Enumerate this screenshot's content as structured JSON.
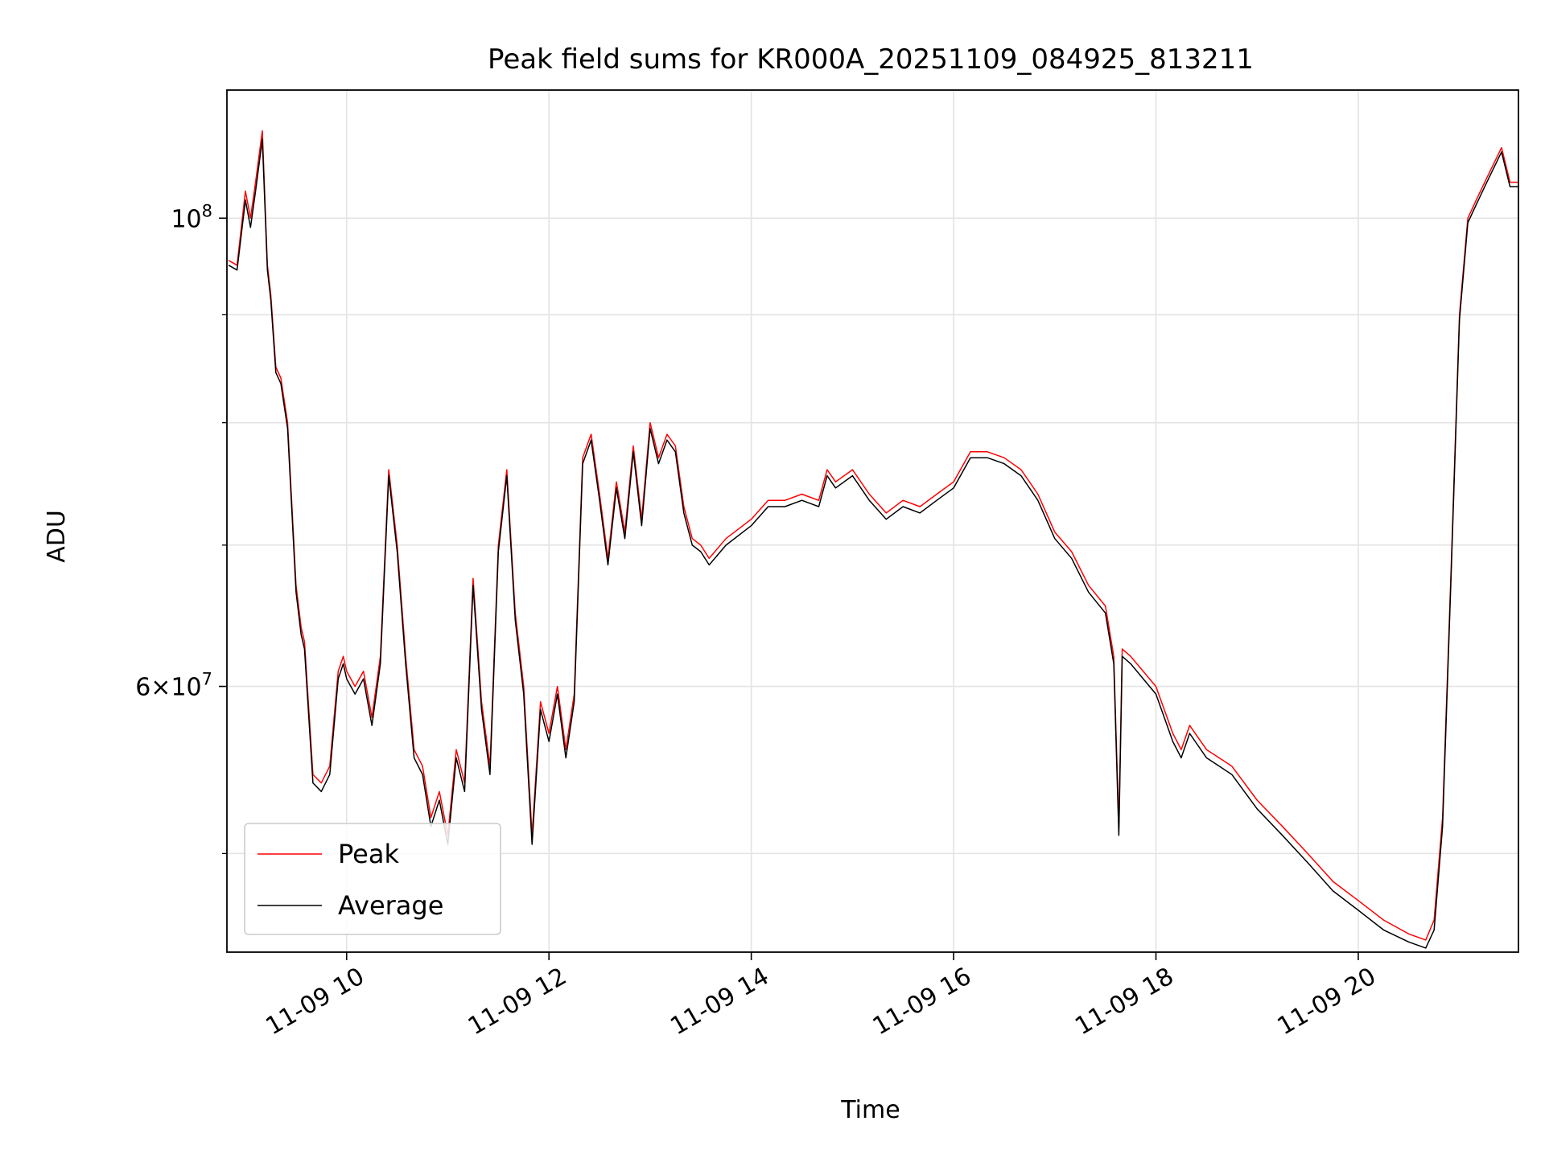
{
  "chart_data": {
    "type": "line",
    "title": "Peak field sums for KR000A_20251109_084925_813211",
    "xlabel": "Time",
    "ylabel": "ADU",
    "x_type": "datetime",
    "xlim": [
      "2025-11-09 08:49",
      "2025-11-09 21:35"
    ],
    "ylim": [
      44900000,
      115000000
    ],
    "y_scale": "log",
    "grid": true,
    "legend_position": "lower-left",
    "x_ticks": [
      {
        "t": "2025-11-09 10:00",
        "label": "11-09 10"
      },
      {
        "t": "2025-11-09 12:00",
        "label": "11-09 12"
      },
      {
        "t": "2025-11-09 14:00",
        "label": "11-09 14"
      },
      {
        "t": "2025-11-09 16:00",
        "label": "11-09 16"
      },
      {
        "t": "2025-11-09 18:00",
        "label": "11-09 18"
      },
      {
        "t": "2025-11-09 20:00",
        "label": "11-09 20"
      }
    ],
    "y_major_ticks": [
      {
        "value": 100000000,
        "base": "10",
        "exp": "8",
        "prefix": ""
      },
      {
        "value": 60000000,
        "base": "10",
        "exp": "7",
        "prefix": "6×"
      }
    ],
    "y_minor_ticks": [
      50000000,
      70000000,
      80000000,
      90000000
    ],
    "series": [
      {
        "name": "Peak",
        "color": "#ff0000",
        "x": [
          "2025-11-09 08:50",
          "2025-11-09 08:55",
          "2025-11-09 09:00",
          "2025-11-09 09:03",
          "2025-11-09 09:06",
          "2025-11-09 09:10",
          "2025-11-09 09:13",
          "2025-11-09 09:15",
          "2025-11-09 09:18",
          "2025-11-09 09:21",
          "2025-11-09 09:25",
          "2025-11-09 09:30",
          "2025-11-09 09:33",
          "2025-11-09 09:35",
          "2025-11-09 09:40",
          "2025-11-09 09:45",
          "2025-11-09 09:50",
          "2025-11-09 09:55",
          "2025-11-09 09:58",
          "2025-11-09 10:00",
          "2025-11-09 10:05",
          "2025-11-09 10:10",
          "2025-11-09 10:15",
          "2025-11-09 10:20",
          "2025-11-09 10:25",
          "2025-11-09 10:30",
          "2025-11-09 10:35",
          "2025-11-09 10:40",
          "2025-11-09 10:45",
          "2025-11-09 10:50",
          "2025-11-09 10:55",
          "2025-11-09 11:00",
          "2025-11-09 11:05",
          "2025-11-09 11:10",
          "2025-11-09 11:15",
          "2025-11-09 11:20",
          "2025-11-09 11:25",
          "2025-11-09 11:30",
          "2025-11-09 11:35",
          "2025-11-09 11:40",
          "2025-11-09 11:45",
          "2025-11-09 11:50",
          "2025-11-09 11:55",
          "2025-11-09 12:00",
          "2025-11-09 12:05",
          "2025-11-09 12:10",
          "2025-11-09 12:15",
          "2025-11-09 12:20",
          "2025-11-09 12:25",
          "2025-11-09 12:30",
          "2025-11-09 12:35",
          "2025-11-09 12:40",
          "2025-11-09 12:45",
          "2025-11-09 12:50",
          "2025-11-09 12:55",
          "2025-11-09 13:00",
          "2025-11-09 13:05",
          "2025-11-09 13:10",
          "2025-11-09 13:15",
          "2025-11-09 13:20",
          "2025-11-09 13:25",
          "2025-11-09 13:30",
          "2025-11-09 13:35",
          "2025-11-09 13:45",
          "2025-11-09 14:00",
          "2025-11-09 14:10",
          "2025-11-09 14:20",
          "2025-11-09 14:30",
          "2025-11-09 14:40",
          "2025-11-09 14:45",
          "2025-11-09 14:50",
          "2025-11-09 15:00",
          "2025-11-09 15:10",
          "2025-11-09 15:20",
          "2025-11-09 15:30",
          "2025-11-09 15:40",
          "2025-11-09 15:50",
          "2025-11-09 16:00",
          "2025-11-09 16:10",
          "2025-11-09 16:20",
          "2025-11-09 16:30",
          "2025-11-09 16:40",
          "2025-11-09 16:50",
          "2025-11-09 17:00",
          "2025-11-09 17:10",
          "2025-11-09 17:20",
          "2025-11-09 17:30",
          "2025-11-09 17:35",
          "2025-11-09 17:38",
          "2025-11-09 17:40",
          "2025-11-09 17:45",
          "2025-11-09 18:00",
          "2025-11-09 18:10",
          "2025-11-09 18:15",
          "2025-11-09 18:20",
          "2025-11-09 18:30",
          "2025-11-09 18:45",
          "2025-11-09 19:00",
          "2025-11-09 19:15",
          "2025-11-09 19:30",
          "2025-11-09 19:45",
          "2025-11-09 20:00",
          "2025-11-09 20:15",
          "2025-11-09 20:30",
          "2025-11-09 20:40",
          "2025-11-09 20:45",
          "2025-11-09 20:50",
          "2025-11-09 20:55",
          "2025-11-09 21:00",
          "2025-11-09 21:05",
          "2025-11-09 21:10",
          "2025-11-09 21:15",
          "2025-11-09 21:20",
          "2025-11-09 21:25",
          "2025-11-09 21:30",
          "2025-11-09 21:35"
        ],
        "values": [
          95500000,
          95000000,
          103000000,
          100000000,
          104000000,
          110000000,
          95000000,
          92000000,
          85000000,
          84000000,
          80000000,
          67000000,
          64000000,
          63000000,
          54500000,
          54000000,
          55000000,
          61000000,
          62000000,
          61000000,
          60000000,
          61000000,
          58000000,
          62000000,
          76000000,
          70000000,
          62000000,
          56000000,
          55000000,
          52000000,
          53500000,
          51000000,
          56000000,
          54000000,
          67500000,
          59000000,
          55000000,
          70000000,
          76000000,
          65000000,
          60000000,
          51000000,
          59000000,
          57000000,
          60000000,
          56000000,
          59500000,
          77000000,
          79000000,
          74000000,
          69000000,
          75000000,
          71000000,
          78000000,
          72000000,
          80000000,
          77000000,
          79000000,
          78000000,
          73000000,
          70500000,
          70000000,
          69000000,
          70500000,
          72000000,
          73500000,
          73500000,
          74000000,
          73500000,
          76000000,
          75000000,
          76000000,
          74000000,
          72500000,
          73500000,
          73000000,
          74000000,
          75000000,
          77500000,
          77500000,
          77000000,
          76000000,
          74000000,
          71000000,
          69500000,
          67000000,
          65500000,
          62000000,
          51500000,
          62500000,
          62000000,
          60000000,
          57000000,
          56000000,
          57500000,
          56000000,
          55000000,
          53000000,
          51500000,
          50000000,
          48500000,
          47500000,
          46500000,
          45800000,
          45500000,
          46500000,
          52000000,
          68000000,
          90000000,
          100000000,
          102000000,
          104000000,
          106000000,
          108000000,
          104000000,
          104000000
        ]
      },
      {
        "name": "Average",
        "color": "#000000",
        "x": [
          "2025-11-09 08:50",
          "2025-11-09 08:55",
          "2025-11-09 09:00",
          "2025-11-09 09:03",
          "2025-11-09 09:06",
          "2025-11-09 09:10",
          "2025-11-09 09:13",
          "2025-11-09 09:15",
          "2025-11-09 09:18",
          "2025-11-09 09:21",
          "2025-11-09 09:25",
          "2025-11-09 09:30",
          "2025-11-09 09:33",
          "2025-11-09 09:35",
          "2025-11-09 09:40",
          "2025-11-09 09:45",
          "2025-11-09 09:50",
          "2025-11-09 09:55",
          "2025-11-09 09:58",
          "2025-11-09 10:00",
          "2025-11-09 10:05",
          "2025-11-09 10:10",
          "2025-11-09 10:15",
          "2025-11-09 10:20",
          "2025-11-09 10:25",
          "2025-11-09 10:30",
          "2025-11-09 10:35",
          "2025-11-09 10:40",
          "2025-11-09 10:45",
          "2025-11-09 10:50",
          "2025-11-09 10:55",
          "2025-11-09 11:00",
          "2025-11-09 11:05",
          "2025-11-09 11:10",
          "2025-11-09 11:15",
          "2025-11-09 11:20",
          "2025-11-09 11:25",
          "2025-11-09 11:30",
          "2025-11-09 11:35",
          "2025-11-09 11:40",
          "2025-11-09 11:45",
          "2025-11-09 11:50",
          "2025-11-09 11:55",
          "2025-11-09 12:00",
          "2025-11-09 12:05",
          "2025-11-09 12:10",
          "2025-11-09 12:15",
          "2025-11-09 12:20",
          "2025-11-09 12:25",
          "2025-11-09 12:30",
          "2025-11-09 12:35",
          "2025-11-09 12:40",
          "2025-11-09 12:45",
          "2025-11-09 12:50",
          "2025-11-09 12:55",
          "2025-11-09 13:00",
          "2025-11-09 13:05",
          "2025-11-09 13:10",
          "2025-11-09 13:15",
          "2025-11-09 13:20",
          "2025-11-09 13:25",
          "2025-11-09 13:30",
          "2025-11-09 13:35",
          "2025-11-09 13:45",
          "2025-11-09 14:00",
          "2025-11-09 14:10",
          "2025-11-09 14:20",
          "2025-11-09 14:30",
          "2025-11-09 14:40",
          "2025-11-09 14:45",
          "2025-11-09 14:50",
          "2025-11-09 15:00",
          "2025-11-09 15:10",
          "2025-11-09 15:20",
          "2025-11-09 15:30",
          "2025-11-09 15:40",
          "2025-11-09 15:50",
          "2025-11-09 16:00",
          "2025-11-09 16:10",
          "2025-11-09 16:20",
          "2025-11-09 16:30",
          "2025-11-09 16:40",
          "2025-11-09 16:50",
          "2025-11-09 17:00",
          "2025-11-09 17:10",
          "2025-11-09 17:20",
          "2025-11-09 17:30",
          "2025-11-09 17:35",
          "2025-11-09 17:38",
          "2025-11-09 17:40",
          "2025-11-09 17:45",
          "2025-11-09 18:00",
          "2025-11-09 18:10",
          "2025-11-09 18:15",
          "2025-11-09 18:20",
          "2025-11-09 18:30",
          "2025-11-09 18:45",
          "2025-11-09 19:00",
          "2025-11-09 19:15",
          "2025-11-09 19:30",
          "2025-11-09 19:45",
          "2025-11-09 20:00",
          "2025-11-09 20:15",
          "2025-11-09 20:30",
          "2025-11-09 20:40",
          "2025-11-09 20:45",
          "2025-11-09 20:50",
          "2025-11-09 20:55",
          "2025-11-09 21:00",
          "2025-11-09 21:05",
          "2025-11-09 21:10",
          "2025-11-09 21:15",
          "2025-11-09 21:20",
          "2025-11-09 21:25",
          "2025-11-09 21:30",
          "2025-11-09 21:35"
        ],
        "values": [
          95000000,
          94500000,
          102000000,
          99000000,
          103000000,
          109000000,
          94500000,
          91500000,
          84500000,
          83500000,
          79500000,
          66500000,
          63500000,
          62500000,
          54000000,
          53500000,
          54500000,
          60500000,
          61500000,
          60500000,
          59500000,
          60500000,
          57500000,
          61500000,
          75500000,
          69500000,
          61500000,
          55500000,
          54500000,
          51500000,
          53000000,
          50500000,
          55500000,
          53500000,
          67000000,
          58500000,
          54500000,
          69500000,
          75500000,
          64500000,
          59500000,
          50500000,
          58500000,
          56500000,
          59500000,
          55500000,
          59000000,
          76500000,
          78500000,
          73500000,
          68500000,
          74500000,
          70500000,
          77500000,
          71500000,
          79500000,
          76500000,
          78500000,
          77500000,
          72500000,
          70000000,
          69500000,
          68500000,
          70000000,
          71500000,
          73000000,
          73000000,
          73500000,
          73000000,
          75500000,
          74500000,
          75500000,
          73500000,
          72000000,
          73000000,
          72500000,
          73500000,
          74500000,
          77000000,
          77000000,
          76500000,
          75500000,
          73500000,
          70500000,
          69000000,
          66500000,
          65000000,
          61500000,
          51000000,
          62000000,
          61500000,
          59500000,
          56500000,
          55500000,
          57000000,
          55500000,
          54500000,
          52500000,
          51000000,
          49500000,
          48000000,
          47000000,
          46000000,
          45400000,
          45100000,
          46000000,
          51500000,
          67500000,
          89500000,
          99500000,
          101500000,
          103500000,
          105500000,
          107500000,
          103500000,
          103500000
        ]
      }
    ]
  }
}
